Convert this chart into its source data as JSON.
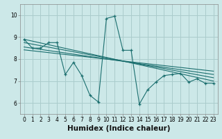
{
  "xlabel": "Humidex (Indice chaleur)",
  "bg_color": "#cce8e8",
  "grid_color": "#aacccc",
  "line_color": "#1a6e6e",
  "xlim": [
    -0.5,
    23.5
  ],
  "ylim": [
    5.5,
    10.5
  ],
  "xticks": [
    0,
    1,
    2,
    3,
    4,
    5,
    6,
    7,
    8,
    9,
    10,
    11,
    12,
    13,
    14,
    15,
    16,
    17,
    18,
    19,
    20,
    21,
    22,
    23
  ],
  "yticks": [
    6,
    7,
    8,
    9,
    10
  ],
  "scatter_x": [
    0,
    1,
    2,
    3,
    4,
    5,
    6,
    7,
    8,
    9,
    10,
    11,
    12,
    13,
    14,
    15,
    16,
    17,
    18,
    19,
    20,
    21,
    22,
    23
  ],
  "scatter_y": [
    8.9,
    8.5,
    8.5,
    8.75,
    8.75,
    7.3,
    7.85,
    7.25,
    6.35,
    6.05,
    9.85,
    9.95,
    8.4,
    8.4,
    5.95,
    6.6,
    6.95,
    7.25,
    7.3,
    7.35,
    6.95,
    7.1,
    6.9,
    6.9
  ],
  "line1_x": [
    0,
    23
  ],
  "line1_y": [
    8.9,
    7.0
  ],
  "line2_x": [
    0,
    23
  ],
  "line2_y": [
    8.75,
    7.15
  ],
  "line3_x": [
    0,
    23
  ],
  "line3_y": [
    8.55,
    7.3
  ],
  "line4_x": [
    0,
    23
  ],
  "line4_y": [
    8.42,
    7.45
  ],
  "tick_fontsize": 5.5,
  "xlabel_fontsize": 7.5
}
